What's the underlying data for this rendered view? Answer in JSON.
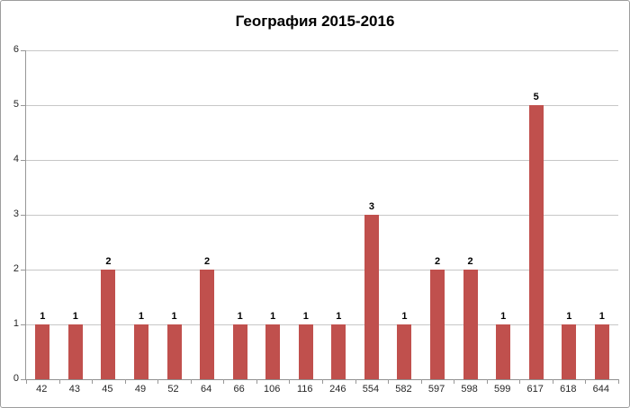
{
  "chart_data": {
    "type": "bar",
    "title": "География 2015-2016",
    "categories": [
      "42",
      "43",
      "45",
      "49",
      "52",
      "64",
      "66",
      "106",
      "116",
      "246",
      "554",
      "582",
      "597",
      "598",
      "599",
      "617",
      "618",
      "644"
    ],
    "values": [
      1,
      1,
      2,
      1,
      1,
      2,
      1,
      1,
      1,
      1,
      3,
      1,
      2,
      2,
      1,
      5,
      1,
      1
    ],
    "xlabel": "",
    "ylabel": "",
    "ylim": [
      0,
      6
    ],
    "yticks": [
      0,
      1,
      2,
      3,
      4,
      5,
      6
    ],
    "grid": true,
    "legend": false,
    "data_labels": true,
    "bar_color": "#C0504D",
    "gridline_color": "#c7c7c7",
    "axis_color": "#8f8f8f",
    "label_color": "#262626"
  }
}
